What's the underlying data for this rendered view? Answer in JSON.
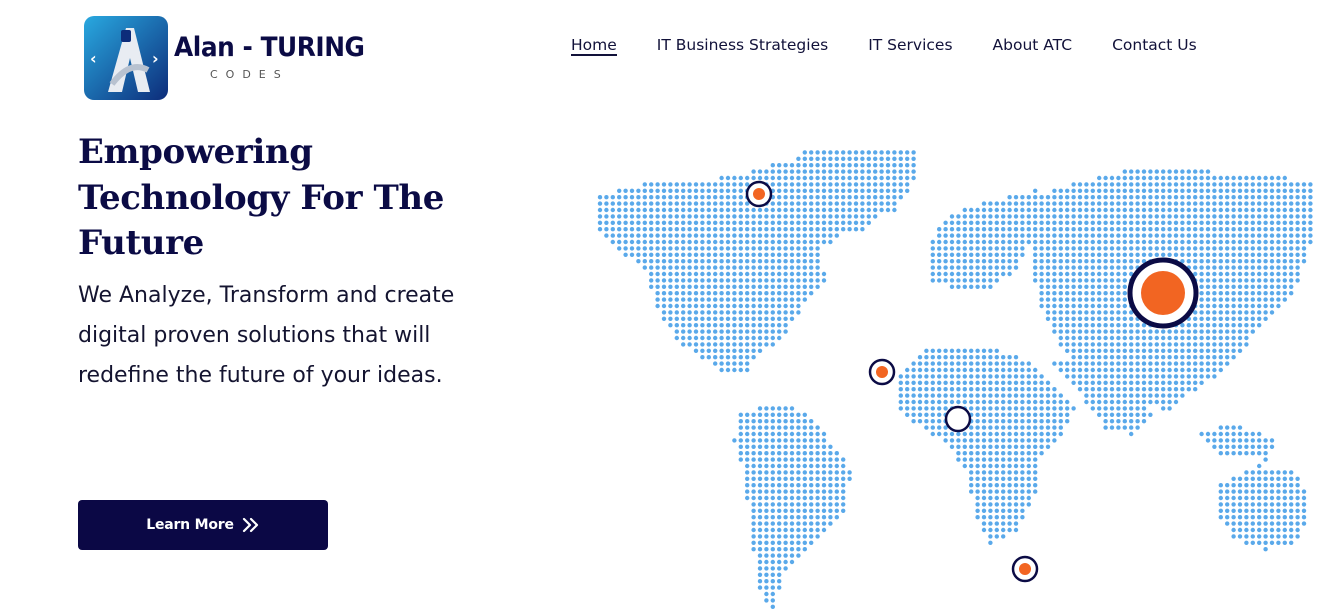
{
  "brand": {
    "name": "Alan - TURING",
    "tagline": "CODES",
    "logo_mark_letter": "A",
    "colors": {
      "navy": "#0b0b45",
      "badge_blue": "#1565c0",
      "badge_cyan": "#29a9e0"
    }
  },
  "nav": {
    "items": [
      {
        "label": "Home",
        "active": true
      },
      {
        "label": "IT Business Strategies",
        "active": false
      },
      {
        "label": "IT Services",
        "active": false
      },
      {
        "label": "About ATC",
        "active": false
      },
      {
        "label": "Contact Us",
        "active": false
      }
    ]
  },
  "hero": {
    "title": "Empowering Technology For The Future",
    "text": "We Analyze, Transform and create digital proven solutions that will redefine the future of your ideas.",
    "button_label": "Learn More",
    "button_icon": "double-chevron-right-icon",
    "button_color": "#0b0845"
  },
  "map": {
    "dot_color": "#5aa9ea",
    "marker_color": "#f26522",
    "ring_color": "#0b0b45",
    "markers": [
      {
        "name": "marker-north-atlantic",
        "size": "small"
      },
      {
        "name": "marker-asia",
        "size": "large"
      },
      {
        "name": "marker-west-africa",
        "size": "small"
      },
      {
        "name": "marker-central-africa",
        "size": "small-hollow"
      },
      {
        "name": "marker-south-atlantic",
        "size": "small"
      }
    ]
  }
}
